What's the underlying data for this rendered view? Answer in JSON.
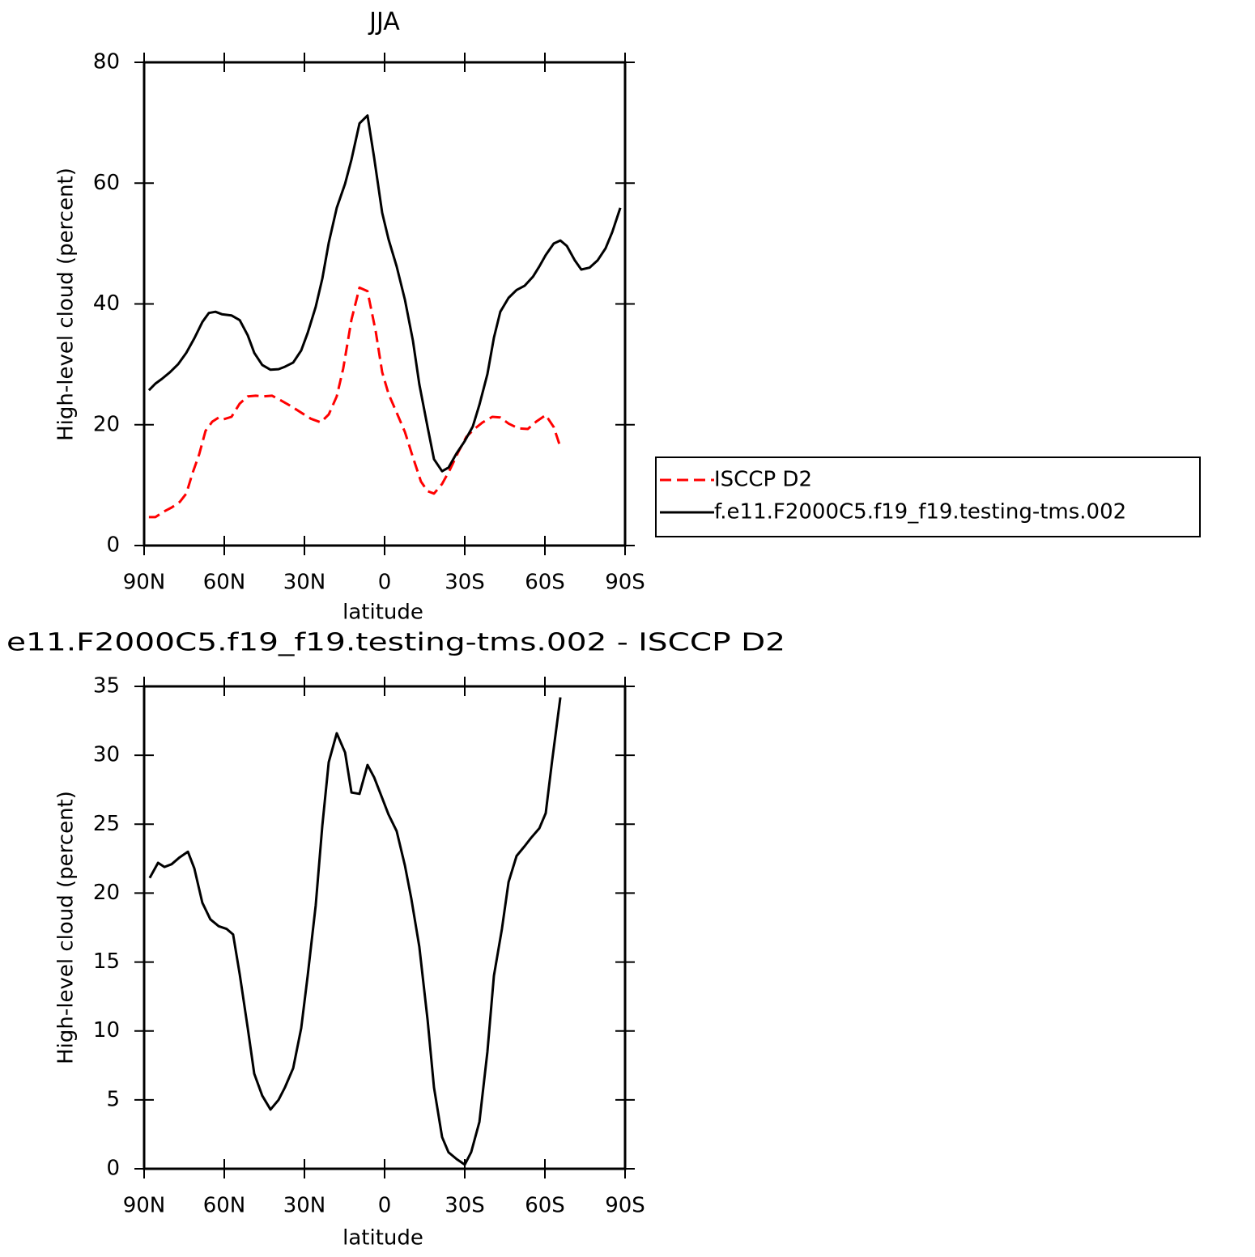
{
  "chart_data": [
    {
      "type": "line",
      "title": "JJA",
      "xlabel": "latitude",
      "ylabel": "High-level cloud (percent)",
      "xlim": [
        90,
        -90
      ],
      "xticks": [
        {
          "value": 90,
          "label": "90N"
        },
        {
          "value": 60,
          "label": "60N"
        },
        {
          "value": 30,
          "label": "30N"
        },
        0,
        {
          "value": -30,
          "label": "30S"
        },
        {
          "value": -60,
          "label": "60S"
        },
        {
          "value": -90,
          "label": "90S"
        }
      ],
      "ylim": [
        0,
        80
      ],
      "yticks": [
        0,
        20,
        40,
        60,
        80
      ],
      "legend": "right",
      "series": [
        {
          "name": "ISCCP D2",
          "color": "#ff0000",
          "line_style": "dashed",
          "x": [
            88.2,
            85.8,
            82.7,
            79.7,
            76.7,
            74.2,
            71.8,
            69.4,
            67.0,
            64.5,
            62.1,
            60.3,
            57.3,
            54.2,
            51.2,
            48.2,
            45.2,
            42.1,
            39.1,
            35.5,
            31.2,
            27.6,
            23.9,
            20.9,
            17.9,
            15.5,
            12.4,
            9.4,
            6.4,
            3.3,
            0.9,
            -1.5,
            -4.5,
            -7.6,
            -10.6,
            -13.6,
            -16.1,
            -18.5,
            -21.5,
            -24.5,
            -27.6,
            -30.6,
            -33.6,
            -36.7,
            -40.3,
            -43.3,
            -46.4,
            -50.0,
            -53.6,
            -56.7,
            -60.3,
            -63.3,
            -65.8
          ],
          "values": [
            4.7,
            4.7,
            5.6,
            6.3,
            7.2,
            8.6,
            12.1,
            15.1,
            19.0,
            20.5,
            21.2,
            20.9,
            21.3,
            23.5,
            24.7,
            24.8,
            24.7,
            24.8,
            24.1,
            23.2,
            22.0,
            21.0,
            20.4,
            21.7,
            24.7,
            29.3,
            37.4,
            42.7,
            42.1,
            35.4,
            28.7,
            25.1,
            22.0,
            18.8,
            14.6,
            10.6,
            9.0,
            8.6,
            10.2,
            12.6,
            15.5,
            18.0,
            19.3,
            20.4,
            21.3,
            21.2,
            20.2,
            19.4,
            19.3,
            20.5,
            21.6,
            19.6,
            16.3
          ]
        },
        {
          "name": "f.e11.F2000C5.f19_f19.testing-tms.002",
          "color": "#000000",
          "line_style": "solid",
          "x": [
            88.2,
            85.8,
            83.3,
            80.3,
            77.3,
            74.2,
            71.2,
            68.2,
            65.8,
            63.3,
            60.9,
            57.3,
            54.2,
            51.2,
            48.8,
            45.8,
            42.7,
            39.7,
            37.3,
            34.2,
            31.2,
            28.8,
            25.8,
            23.3,
            20.9,
            17.9,
            14.8,
            12.4,
            9.4,
            6.4,
            3.9,
            0.9,
            -1.5,
            -4.5,
            -7.6,
            -10.6,
            -13.0,
            -16.1,
            -18.5,
            -21.5,
            -23.9,
            -27.0,
            -30.0,
            -33.0,
            -35.5,
            -38.5,
            -40.9,
            -43.3,
            -46.4,
            -49.4,
            -52.4,
            -55.5,
            -57.9,
            -60.3,
            -63.3,
            -65.8,
            -68.2,
            -71.2,
            -73.6,
            -76.7,
            -79.7,
            -82.7,
            -85.2,
            -88.2
          ],
          "values": [
            25.7,
            26.8,
            27.6,
            28.7,
            30.0,
            31.9,
            34.3,
            37.0,
            38.5,
            38.7,
            38.3,
            38.1,
            37.3,
            34.8,
            31.9,
            29.9,
            29.1,
            29.2,
            29.6,
            30.3,
            32.3,
            35.2,
            39.5,
            44.2,
            50.1,
            55.9,
            59.9,
            63.9,
            69.9,
            71.2,
            64.2,
            55.1,
            50.7,
            46.2,
            40.7,
            33.9,
            26.7,
            19.6,
            14.3,
            12.3,
            12.9,
            15.3,
            17.3,
            19.7,
            23.3,
            28.4,
            34.4,
            38.7,
            41.0,
            42.3,
            43.0,
            44.5,
            46.2,
            48.1,
            50.0,
            50.5,
            49.6,
            47.2,
            45.7,
            46.0,
            47.2,
            49.2,
            51.9,
            55.9
          ]
        }
      ]
    },
    {
      "type": "line",
      "title": "e11.F2000C5.f19_f19.testing-tms.002 - ISCCP D2",
      "xlabel": "latitude",
      "ylabel": "High-level cloud (percent)",
      "xlim": [
        90,
        -90
      ],
      "xticks": [
        {
          "value": 90,
          "label": "90N"
        },
        {
          "value": 60,
          "label": "60N"
        },
        {
          "value": 30,
          "label": "30N"
        },
        0,
        {
          "value": -30,
          "label": "30S"
        },
        {
          "value": -60,
          "label": "60S"
        },
        {
          "value": -90,
          "label": "90S"
        }
      ],
      "ylim": [
        0,
        35
      ],
      "yticks": [
        0,
        5,
        10,
        15,
        20,
        25,
        30,
        35
      ],
      "series": [
        {
          "color": "#000000",
          "line_style": "solid",
          "x": [
            87.9,
            84.8,
            82.4,
            79.7,
            76.7,
            73.6,
            71.2,
            68.2,
            65.2,
            62.1,
            59.1,
            56.7,
            54.2,
            51.2,
            48.8,
            45.8,
            42.7,
            39.7,
            37.3,
            34.2,
            31.2,
            28.8,
            25.8,
            23.3,
            20.9,
            17.9,
            14.8,
            12.4,
            9.4,
            6.4,
            3.9,
            0.9,
            -1.5,
            -4.5,
            -7.6,
            -10.0,
            -13.0,
            -16.1,
            -18.5,
            -21.5,
            -23.9,
            -27.0,
            -30.0,
            -32.4,
            -35.5,
            -38.5,
            -40.9,
            -43.9,
            -46.4,
            -49.4,
            -52.4,
            -54.8,
            -57.9,
            -60.3,
            -62.7,
            -65.8
          ],
          "values": [
            21.1,
            22.2,
            21.9,
            22.1,
            22.6,
            23.0,
            21.8,
            19.3,
            18.1,
            17.6,
            17.4,
            17.0,
            14.1,
            10.2,
            6.9,
            5.3,
            4.3,
            5.0,
            5.9,
            7.3,
            10.2,
            14.0,
            19.1,
            24.9,
            29.5,
            31.6,
            30.2,
            27.3,
            27.2,
            29.3,
            28.4,
            26.9,
            25.7,
            24.5,
            22.0,
            19.6,
            16.1,
            10.8,
            5.9,
            2.3,
            1.2,
            0.7,
            0.3,
            1.2,
            3.4,
            8.5,
            14.0,
            17.4,
            20.8,
            22.7,
            23.4,
            24.0,
            24.7,
            25.8,
            29.6,
            34.2
          ]
        }
      ]
    }
  ]
}
